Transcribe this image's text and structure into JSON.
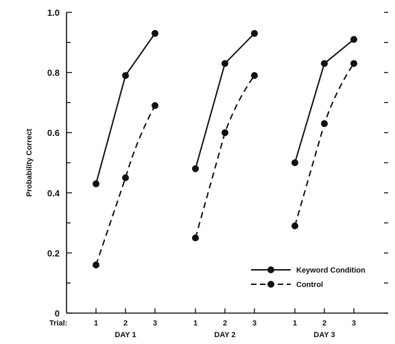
{
  "chart_data": {
    "type": "line",
    "ylabel": "Probability Correct",
    "ylim": [
      0,
      1.0
    ],
    "yticks": [
      "0",
      "0.2",
      "0.4",
      "0.6",
      "0.8",
      "1.0"
    ],
    "y_minor_step": 0.1,
    "trial_prefix": "Trial:",
    "groups": [
      {
        "name": "DAY 1",
        "trials": [
          "1",
          "2",
          "3"
        ]
      },
      {
        "name": "DAY 2",
        "trials": [
          "1",
          "2",
          "3"
        ]
      },
      {
        "name": "DAY 3",
        "trials": [
          "1",
          "2",
          "3"
        ]
      }
    ],
    "series": [
      {
        "name": "Keyword Condition",
        "style": "solid",
        "color": "#111111",
        "values": [
          [
            0.43,
            0.79,
            0.93
          ],
          [
            0.48,
            0.83,
            0.93
          ],
          [
            0.5,
            0.83,
            0.91
          ]
        ]
      },
      {
        "name": "Control",
        "style": "dashed",
        "color": "#111111",
        "values": [
          [
            0.16,
            0.45,
            0.69
          ],
          [
            0.25,
            0.6,
            0.79
          ],
          [
            0.29,
            0.63,
            0.83
          ]
        ]
      }
    ],
    "legend": {
      "position": "bottom-right"
    },
    "grid": false
  }
}
